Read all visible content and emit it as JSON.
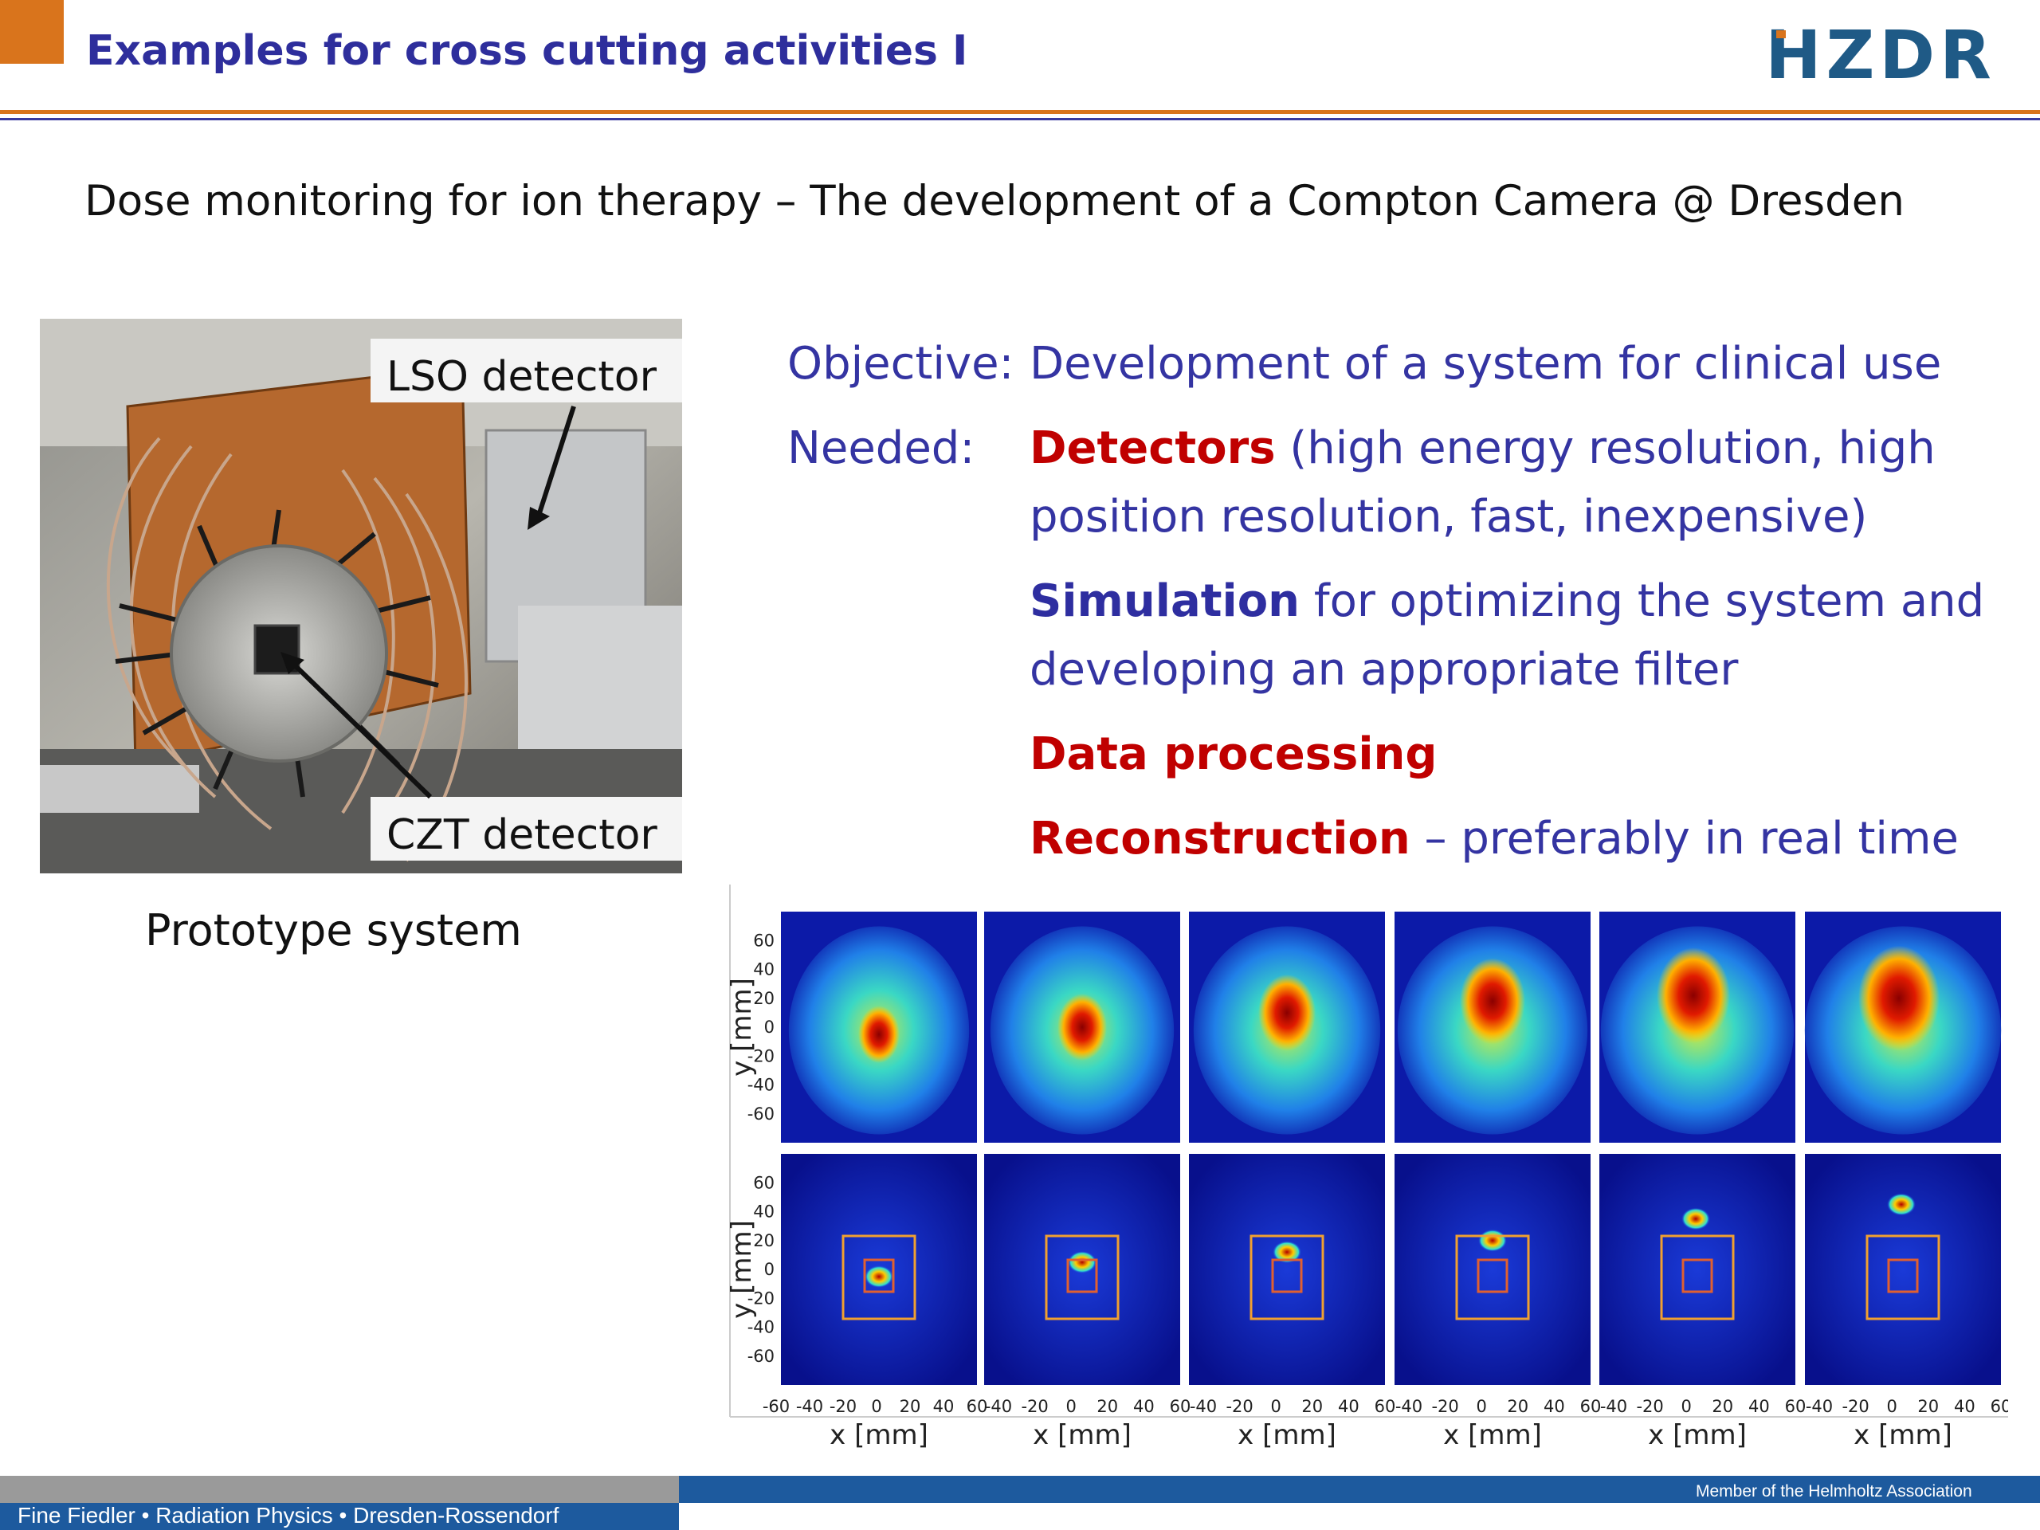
{
  "header": {
    "title": "Examples for cross cutting activities I",
    "logo_text": "HZDR",
    "accent_orange": "#d9741c",
    "accent_blue": "#2e2e9c"
  },
  "headline": "Dose monitoring for ion therapy – The development of a Compton Camera @ Dresden",
  "photo": {
    "label_lso": "LSO detector",
    "label_czt": "CZT detector",
    "caption": "Prototype system"
  },
  "content": {
    "objective_label": "Objective:",
    "objective_text": "Development of a system for clinical use",
    "needed_label": "Needed:",
    "detectors_bold": "Detectors",
    "detectors_rest_1": " (high energy resolution, high",
    "detectors_rest_2": "position resolution, fast, inexpensive)",
    "simulation_bold": "Simulation",
    "simulation_rest_1": " for optimizing the system and",
    "simulation_rest_2": "developing an appropriate filter",
    "data_processing": "Data processing",
    "reconstruction_bold": "Reconstruction",
    "reconstruction_rest": " – preferably in real time",
    "red_color": "#c00000"
  },
  "figure": {
    "y_label": "y [mm]",
    "x_label": "x [mm]",
    "y_ticks": [
      "60",
      "40",
      "20",
      "0",
      "-20",
      "-40",
      "-60"
    ],
    "x_ticks_first": [
      "-60",
      "-40",
      "-20",
      "0",
      "20",
      "40",
      "60"
    ],
    "x_ticks_other": [
      "-40",
      "-20",
      "0",
      "20",
      "40",
      "60"
    ],
    "panel_count": 6,
    "top_row_hotspot_y": [
      -5,
      0,
      10,
      18,
      22,
      20
    ],
    "bottom_row_hotspot_y": [
      -5,
      5,
      12,
      20,
      35,
      45
    ]
  },
  "footer": {
    "name": "Fine Fiedler • Radiation Physics • Dresden-Rossendorf",
    "member": "Member of the Helmholtz Association"
  }
}
